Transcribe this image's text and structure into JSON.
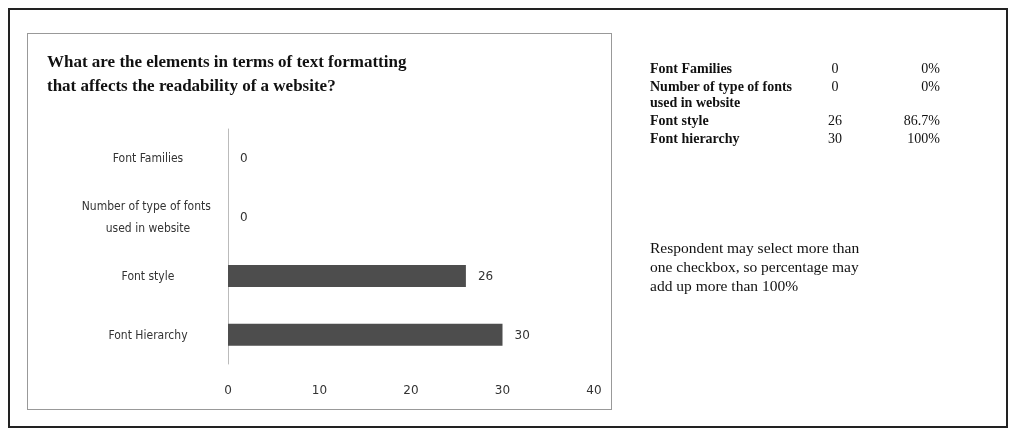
{
  "chart_data": [
    {
      "type": "bar",
      "orientation": "horizontal",
      "title": "What are the elements in terms of text formatting\nthat affects the readability of a website?",
      "categories": [
        "Font Families",
        "Number of type of fonts used in website",
        "Font style",
        "Font Hierarchy"
      ],
      "values": [
        0,
        0,
        26,
        30
      ],
      "color": "#4d4d4d",
      "xlim": [
        0,
        40
      ],
      "xticks": [
        0,
        10,
        20,
        30,
        40
      ],
      "data_labels": true,
      "grid": false
    },
    {
      "type": "other",
      "annotations": [
        "Font Families",
        "0",
        "0%",
        "Number of type of fonts used  in website",
        "0",
        "0%",
        "Font style",
        "26",
        "86.7%",
        "Font hierarchy",
        "30",
        "100%",
        "Respondent may select more than one checkbox, so percentage may add up more than 100%"
      ]
    }
  ]
}
